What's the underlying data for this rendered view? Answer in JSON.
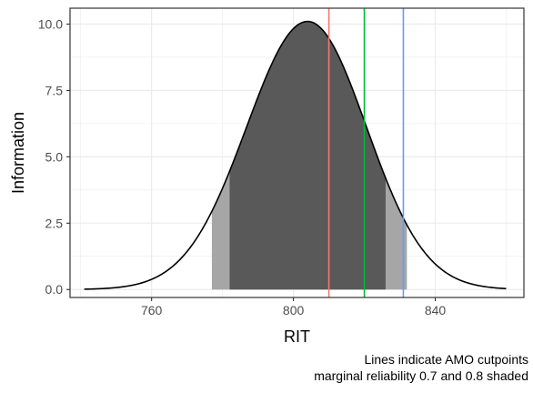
{
  "chart_data": {
    "type": "area",
    "xlabel": "RIT",
    "ylabel": "Information",
    "xlim": [
      737,
      865
    ],
    "ylim": [
      -0.3,
      10.6
    ],
    "x_ticks": [
      760,
      800,
      840
    ],
    "y_ticks": [
      0.0,
      2.5,
      5.0,
      7.5,
      10.0
    ],
    "y_tick_labels": [
      "0.0",
      "2.5",
      "5.0",
      "7.5",
      "10.0"
    ],
    "grid": true,
    "information_curve": {
      "peak_x": 804,
      "peak_y": 10.1,
      "x_range": [
        741,
        860
      ],
      "x": [
        741,
        750,
        760,
        770,
        780,
        790,
        800,
        804,
        810,
        820,
        830,
        840,
        850,
        860
      ],
      "y": [
        0.1,
        0.3,
        0.95,
        2.4,
        4.9,
        7.9,
        9.85,
        10.1,
        9.5,
        6.8,
        3.7,
        1.6,
        0.6,
        0.25
      ]
    },
    "shaded_regions": [
      {
        "label": "marginal reliability 0.7",
        "x_start": 777,
        "x_end": 832,
        "color": "#a6a6a6"
      },
      {
        "label": "marginal reliability 0.8",
        "x_start": 782,
        "x_end": 826,
        "color": "#595959"
      }
    ],
    "cutpoint_lines": [
      {
        "x": 810,
        "color": "#f8766d"
      },
      {
        "x": 820,
        "color": "#00ba38"
      },
      {
        "x": 831,
        "color": "#619cff"
      }
    ],
    "annotations": [
      "Lines indicate AMO cutpoints",
      "marginal reliability 0.7 and 0.8 shaded"
    ],
    "colors": {
      "panel": "#ffffff",
      "grid": "#ebebeb",
      "border": "#333333",
      "curve": "#000000"
    }
  }
}
